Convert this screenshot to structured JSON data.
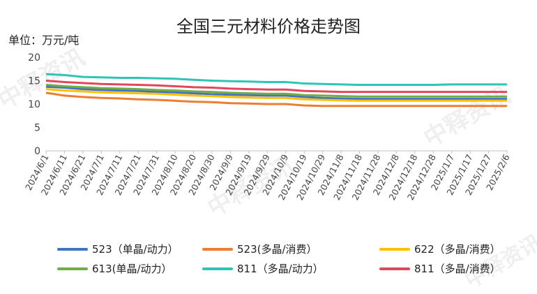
{
  "watermark_text": "中释资讯",
  "chart_data": {
    "type": "line",
    "title": "全国三元材料价格走势图",
    "ylabel": "单位：万元/吨",
    "xlabel": "",
    "ylim": [
      0,
      20
    ],
    "yticks": [
      0,
      5,
      10,
      15,
      20
    ],
    "grid": false,
    "legend_position": "bottom",
    "x_ticks": [
      "2024/6/1",
      "2024/6/11",
      "2024/6/21",
      "2024/7/1",
      "2024/7/11",
      "2024/7/21",
      "2024/7/31",
      "2024/8/10",
      "2024/8/20",
      "2024/8/30",
      "2024/9/9",
      "2024/9/19",
      "2024/9/29",
      "2024/10/9",
      "2024/10/19",
      "2024/10/29",
      "2024/11/8",
      "2024/11/18",
      "2024/11/28",
      "2024/12/8",
      "2024/12/18",
      "2024/12/28",
      "2025/1/7",
      "2025/1/17",
      "2025/1/27",
      "2025/2/6"
    ],
    "x": [
      "2024/6/1",
      "2024/6/11",
      "2024/6/21",
      "2024/7/1",
      "2024/7/11",
      "2024/7/21",
      "2024/7/31",
      "2024/8/10",
      "2024/8/20",
      "2024/8/30",
      "2024/9/9",
      "2024/9/19",
      "2024/9/29",
      "2024/10/9",
      "2024/10/19",
      "2024/10/29",
      "2024/11/8",
      "2024/11/18",
      "2024/11/28",
      "2024/12/8",
      "2024/12/18",
      "2024/12/28",
      "2025/1/7",
      "2025/1/17",
      "2025/1/27",
      "2025/2/6"
    ],
    "series": [
      {
        "name": "523（单晶/动力）",
        "color": "#4472C4",
        "values": [
          13.7,
          13.5,
          13.2,
          13.0,
          12.9,
          12.8,
          12.6,
          12.5,
          12.3,
          12.1,
          12.0,
          11.9,
          11.8,
          11.8,
          11.5,
          11.3,
          11.2,
          11.1,
          11.1,
          11.1,
          11.1,
          11.1,
          11.1,
          11.1,
          11.1,
          11.1
        ]
      },
      {
        "name": "523(多晶/消费）",
        "color": "#ED7D31",
        "values": [
          12.4,
          11.8,
          11.5,
          11.3,
          11.2,
          11.0,
          10.9,
          10.7,
          10.5,
          10.4,
          10.2,
          10.1,
          10.0,
          10.0,
          9.7,
          9.6,
          9.6,
          9.6,
          9.6,
          9.6,
          9.6,
          9.6,
          9.6,
          9.6,
          9.6,
          9.6
        ]
      },
      {
        "name": "622（多晶/消费）",
        "color": "#FFC000",
        "values": [
          13.2,
          12.9,
          12.7,
          12.5,
          12.4,
          12.3,
          12.2,
          12.0,
          11.8,
          11.7,
          11.5,
          11.4,
          11.3,
          11.3,
          11.0,
          10.9,
          10.8,
          10.7,
          10.7,
          10.7,
          10.7,
          10.7,
          10.7,
          10.7,
          10.7,
          10.7
        ]
      },
      {
        "name": "613(单晶/动力）",
        "color": "#70AD47",
        "values": [
          14.1,
          13.8,
          13.6,
          13.4,
          13.3,
          13.2,
          13.0,
          12.9,
          12.7,
          12.6,
          12.4,
          12.3,
          12.2,
          12.2,
          11.9,
          11.8,
          11.7,
          11.6,
          11.6,
          11.6,
          11.6,
          11.6,
          11.6,
          11.6,
          11.6,
          11.6
        ]
      },
      {
        "name": "811（多晶/动力）",
        "color": "#2EC4B6",
        "values": [
          16.4,
          16.2,
          15.8,
          15.7,
          15.6,
          15.6,
          15.5,
          15.4,
          15.2,
          15.0,
          14.9,
          14.8,
          14.7,
          14.7,
          14.4,
          14.3,
          14.2,
          14.1,
          14.1,
          14.1,
          14.1,
          14.1,
          14.2,
          14.2,
          14.2,
          14.2
        ]
      },
      {
        "name": "811（多晶/消费）",
        "color": "#E0475A",
        "values": [
          15.0,
          14.7,
          14.5,
          14.3,
          14.2,
          14.1,
          14.0,
          13.8,
          13.6,
          13.5,
          13.3,
          13.2,
          13.1,
          13.1,
          12.8,
          12.7,
          12.6,
          12.6,
          12.6,
          12.6,
          12.6,
          12.6,
          12.6,
          12.6,
          12.6,
          12.6
        ]
      }
    ]
  }
}
